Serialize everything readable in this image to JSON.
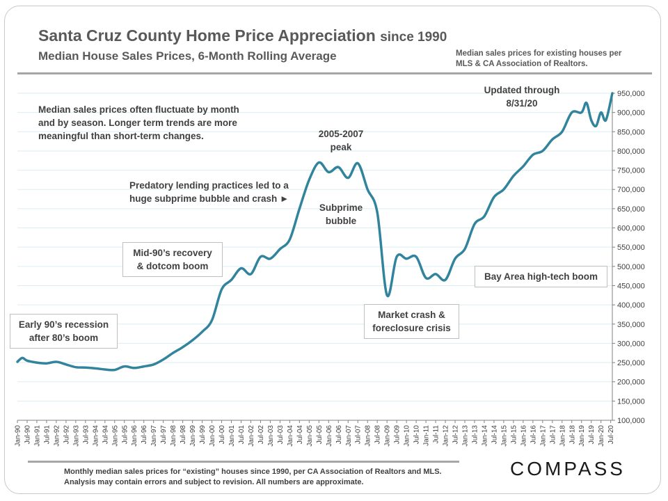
{
  "header": {
    "title_main": "Santa Cruz County Home Price Appreciation",
    "title_suffix": "since 1990",
    "subtitle": "Median House Sales Prices, 6-Month Rolling Average",
    "source_note": "Median sales prices for existing houses per MLS & CA Association  of Realtors."
  },
  "annotations": {
    "fluctuation_note": "Median sales prices often fluctuate by month\nand by season. Longer term trends are more\nmeaningful than short-term changes.",
    "updated": "Updated through\n8/31/20",
    "peak": "2005-2007\npeak",
    "predatory": "Predatory lending practices led to a\nhuge subprime bubble and crash ►",
    "subprime": "Subprime\nbubble",
    "mid90s": "Mid-90’s recovery\n& dotcom boom",
    "early90s": "Early 90’s recession\nafter 80’s boom",
    "crash": "Market crash &\nforeclosure crisis",
    "bayarea": "Bay Area high-tech boom"
  },
  "footer": {
    "note": "Monthly median sales prices for “existing” houses since 1990, per CA Association of Realtors and MLS.  Analysis may contain errors and subject to revision. All numbers are approximate.",
    "brand": "COMPASS"
  },
  "chart_data": {
    "type": "line",
    "title": "Santa Cruz County Home Price Appreciation since 1990",
    "ylim": [
      100000,
      950000
    ],
    "y_ticks": [
      "950,000",
      "900,000",
      "850,000",
      "800,000",
      "750,000",
      "700,000",
      "650,000",
      "600,000",
      "550,000",
      "500,000",
      "450,000",
      "400,000",
      "350,000",
      "300,000",
      "250,000",
      "200,000",
      "150,000",
      "100,000"
    ],
    "x_ticks": [
      "Jan-90",
      "Jul-90",
      "Jan-91",
      "Jul-91",
      "Jan-92",
      "Jul-92",
      "Jan-93",
      "Jul-93",
      "Jan-94",
      "Jul-94",
      "Jan-95",
      "Jul-95",
      "Jan-96",
      "Jul-96",
      "Jan-97",
      "Jul-97",
      "Jan-98",
      "Jul-98",
      "Jan-99",
      "Jul-99",
      "Jan-00",
      "Jul-00",
      "Jan-01",
      "Jul-01",
      "Jan-02",
      "Jul-02",
      "Jan-03",
      "Jul-03",
      "Jan-04",
      "Jul-04",
      "Jan-05",
      "Jul-05",
      "Jan-06",
      "Jul-06",
      "Jan-07",
      "Jul-07",
      "Jan-08",
      "Jul-08",
      "Jan-09",
      "Jul-09",
      "Jan-10",
      "Jul-10",
      "Jan-11",
      "Jul-11",
      "Jan-12",
      "Jul-12",
      "Jan-13",
      "Jul-13",
      "Jan-14",
      "Jul-14",
      "Jan-15",
      "Jul-15",
      "Jan-16",
      "Jul-16",
      "Jan-17",
      "Jul-17",
      "Jan-18",
      "Jul-18",
      "Jan-19",
      "Jul-19",
      "Jan-20",
      "Jul-20"
    ],
    "grid": "horizontal",
    "line_color": "#31849b",
    "series": [
      {
        "x": [
          "Jan-90",
          "Apr-90",
          "Jul-90",
          "Jan-91",
          "Jul-91",
          "Jan-92",
          "Jul-92",
          "Jan-93",
          "Jul-93",
          "Jan-94",
          "Jul-94",
          "Jan-95",
          "Jul-95",
          "Jan-96",
          "Jul-96",
          "Jan-97",
          "Jul-97",
          "Jan-98",
          "Jul-98",
          "Jan-99",
          "Jul-99",
          "Jan-00",
          "Jul-00",
          "Jan-01",
          "Jul-01",
          "Jan-02",
          "Jul-02",
          "Jan-03",
          "Jul-03",
          "Jan-04",
          "Jul-04",
          "Jan-05",
          "Jul-05",
          "Jan-06",
          "Jul-06",
          "Jan-07",
          "Jul-07",
          "Jan-08",
          "Jul-08",
          "Jan-09",
          "Jul-09",
          "Jan-10",
          "Jul-10",
          "Jan-11",
          "Jul-11",
          "Jan-12",
          "Jul-12",
          "Jan-13",
          "Jul-13",
          "Jan-14",
          "Jul-14",
          "Jan-15",
          "Jul-15",
          "Jan-16",
          "Jul-16",
          "Jan-17",
          "Jul-17",
          "Jan-18",
          "Jul-18",
          "Jan-19",
          "Apr-19",
          "Jul-19",
          "Oct-19",
          "Jan-20",
          "Apr-20",
          "Aug-20"
        ],
        "values": [
          252000,
          262000,
          255000,
          250000,
          248000,
          252000,
          245000,
          238000,
          237000,
          235000,
          232000,
          231000,
          240000,
          236000,
          240000,
          245000,
          258000,
          275000,
          290000,
          308000,
          330000,
          360000,
          440000,
          465000,
          495000,
          480000,
          525000,
          520000,
          545000,
          570000,
          650000,
          725000,
          770000,
          745000,
          758000,
          730000,
          768000,
          700000,
          640000,
          425000,
          525000,
          520000,
          525000,
          470000,
          480000,
          465000,
          520000,
          545000,
          610000,
          630000,
          680000,
          700000,
          735000,
          760000,
          790000,
          800000,
          830000,
          850000,
          900000,
          900000,
          925000,
          880000,
          865000,
          900000,
          880000,
          950000
        ]
      }
    ]
  }
}
